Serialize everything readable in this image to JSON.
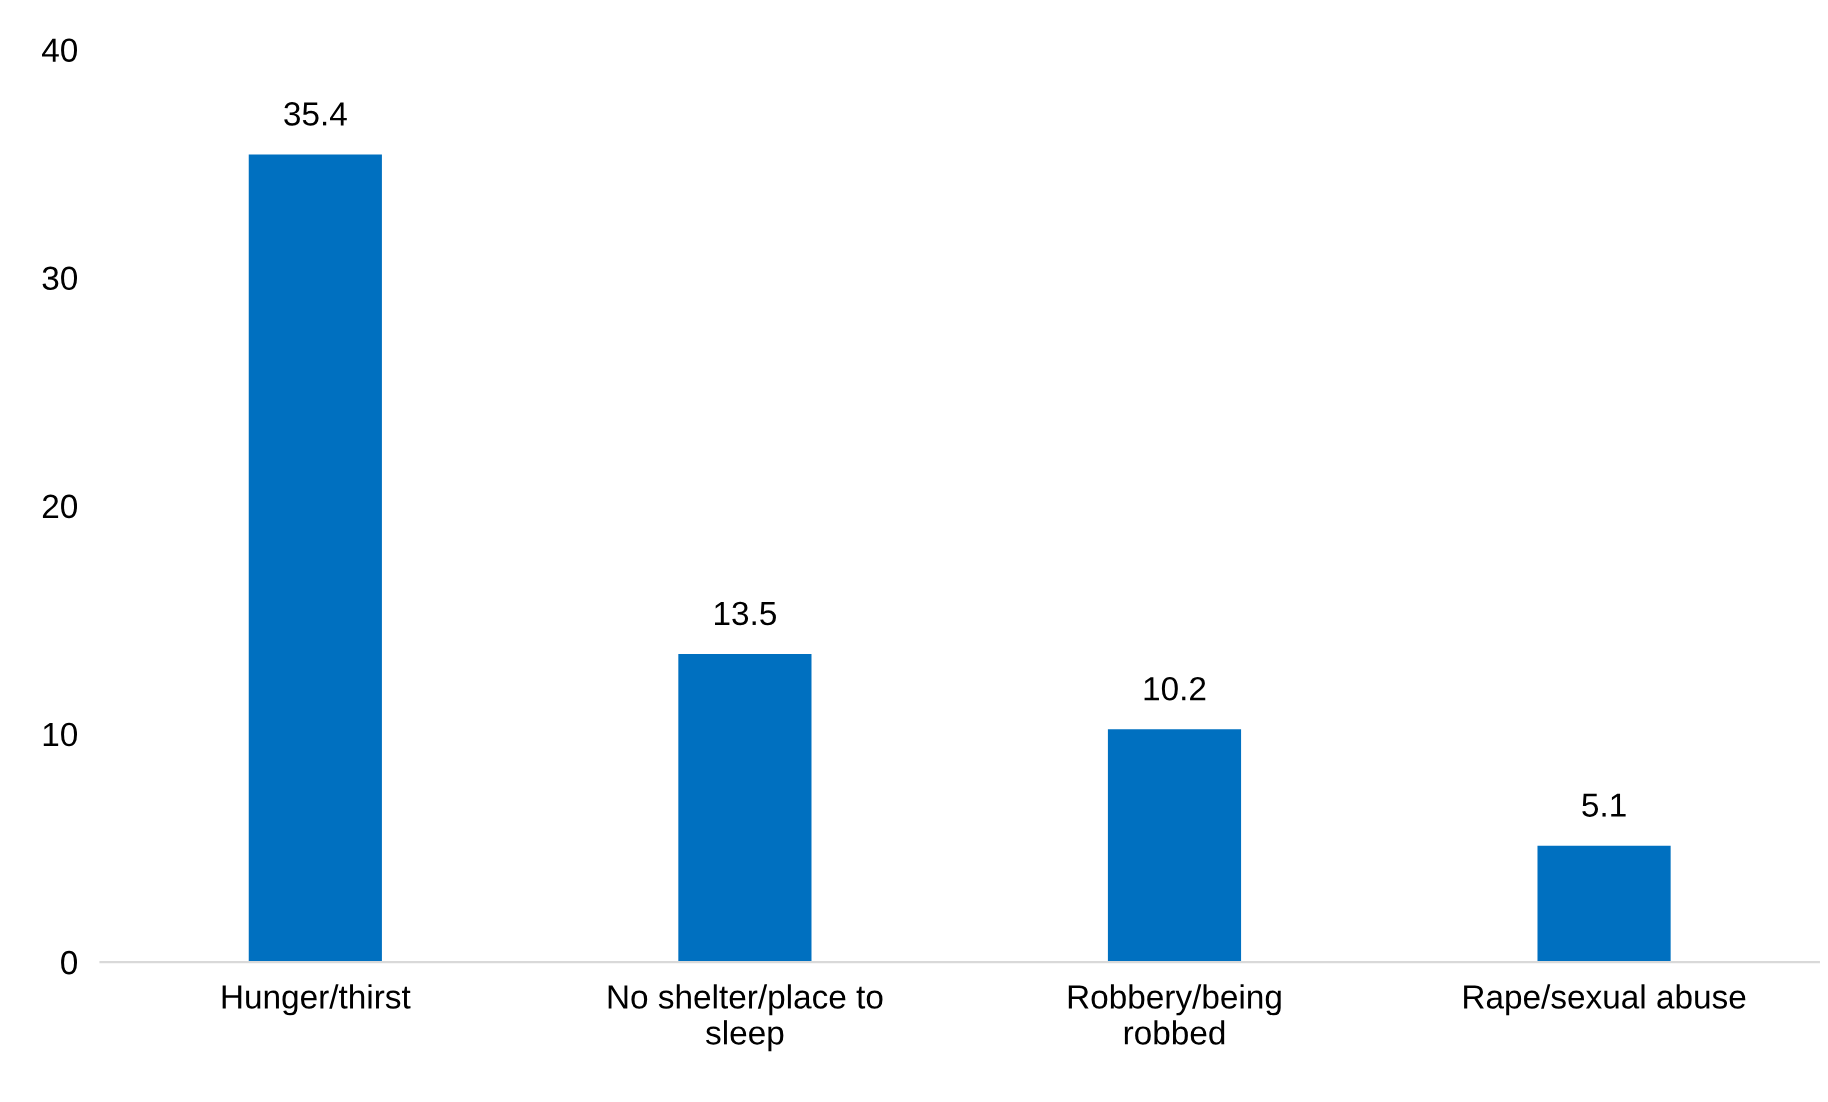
{
  "chart_data": {
    "type": "bar",
    "categories": [
      "Hunger/thirst",
      "No shelter/place to\nsleep",
      "Robbery/being\nrobbed",
      "Rape/sexual abuse"
    ],
    "values": [
      35.4,
      13.5,
      10.2,
      5.1
    ],
    "color": "#0070c0",
    "ylim": [
      0,
      40
    ],
    "yticks": [
      0,
      10,
      20,
      30,
      40
    ],
    "grid": false,
    "data_labels": true
  }
}
